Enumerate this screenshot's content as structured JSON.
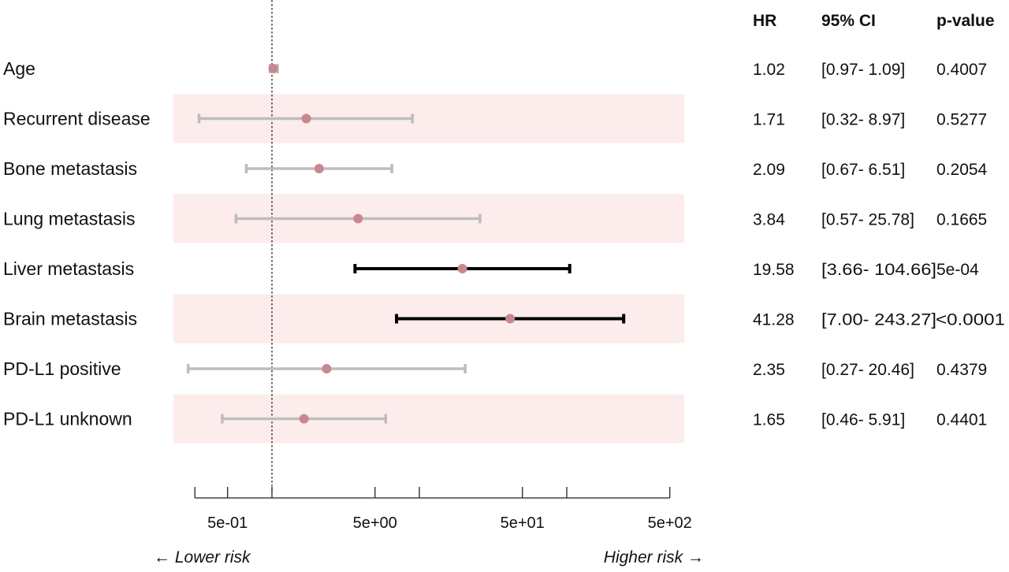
{
  "table_headers": {
    "hr": "HR",
    "ci": "95% CI",
    "p": "p-value"
  },
  "axis": {
    "lower_label": "← Lower risk",
    "higher_label": "Higher risk →"
  },
  "chart_data": {
    "type": "forest",
    "title": "",
    "xlabel": "",
    "x_scale": "log",
    "xlim": [
      0.3,
      500
    ],
    "reference_line": 1,
    "x_ticks": [
      0.3,
      0.5,
      1,
      5,
      10,
      50,
      100,
      500
    ],
    "x_tick_labels": [
      "",
      "5e-01",
      "",
      "5e+00",
      "",
      "5e+01",
      "",
      "5e+02"
    ],
    "shaded_bands": true,
    "colors": {
      "point": "#c9878f",
      "ci_significant": "#000000",
      "ci_nonsignificant": "#bdbdbd",
      "band": "#fdecec"
    },
    "rows": [
      {
        "label": "Age",
        "hr": 1.02,
        "lo": 0.97,
        "hi": 1.09,
        "hr_text": "1.02",
        "ci_text": "[0.97- 1.09]",
        "p_text": "0.4007",
        "significant": false
      },
      {
        "label": "Recurrent disease",
        "hr": 1.71,
        "lo": 0.32,
        "hi": 8.97,
        "hr_text": "1.71",
        "ci_text": "[0.32- 8.97]",
        "p_text": "0.5277",
        "significant": false
      },
      {
        "label": "Bone metastasis",
        "hr": 2.09,
        "lo": 0.67,
        "hi": 6.51,
        "hr_text": "2.09",
        "ci_text": "[0.67- 6.51]",
        "p_text": "0.2054",
        "significant": false
      },
      {
        "label": "Lung metastasis",
        "hr": 3.84,
        "lo": 0.57,
        "hi": 25.78,
        "hr_text": "3.84",
        "ci_text": "[0.57- 25.78]",
        "p_text": "0.1665",
        "significant": false
      },
      {
        "label": "Liver metastasis",
        "hr": 19.58,
        "lo": 3.66,
        "hi": 104.66,
        "hr_text": "19.58",
        "ci_text": "[3.66- 104.66]",
        "p_text": "5e-04",
        "significant": true
      },
      {
        "label": "Brain metastasis",
        "hr": 41.28,
        "lo": 7.0,
        "hi": 243.27,
        "hr_text": "41.28",
        "ci_text": "[7.00- 243.27]",
        "p_text": "<0.0001",
        "significant": true
      },
      {
        "label": "PD-L1 positive",
        "hr": 2.35,
        "lo": 0.27,
        "hi": 20.46,
        "hr_text": "2.35",
        "ci_text": "[0.27- 20.46]",
        "p_text": "0.4379",
        "significant": false
      },
      {
        "label": "PD-L1 unknown",
        "hr": 1.65,
        "lo": 0.46,
        "hi": 5.91,
        "hr_text": "1.65",
        "ci_text": "[0.46- 5.91]",
        "p_text": "0.4401",
        "significant": false
      }
    ]
  }
}
